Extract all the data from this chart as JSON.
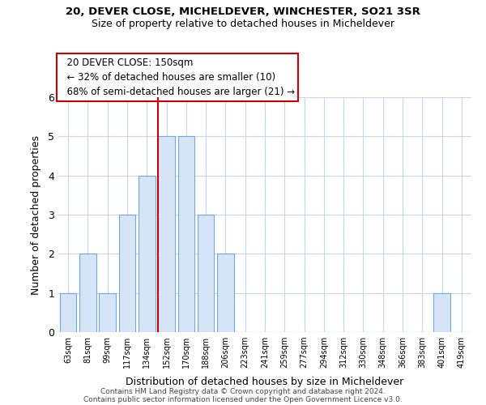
{
  "title1": "20, DEVER CLOSE, MICHELDEVER, WINCHESTER, SO21 3SR",
  "title2": "Size of property relative to detached houses in Micheldever",
  "xlabel": "Distribution of detached houses by size in Micheldever",
  "ylabel": "Number of detached properties",
  "bar_labels": [
    "63sqm",
    "81sqm",
    "99sqm",
    "117sqm",
    "134sqm",
    "152sqm",
    "170sqm",
    "188sqm",
    "206sqm",
    "223sqm",
    "241sqm",
    "259sqm",
    "277sqm",
    "294sqm",
    "312sqm",
    "330sqm",
    "348sqm",
    "366sqm",
    "383sqm",
    "401sqm",
    "419sqm"
  ],
  "bar_values": [
    1,
    2,
    1,
    3,
    4,
    5,
    5,
    3,
    2,
    0,
    0,
    0,
    0,
    0,
    0,
    0,
    0,
    0,
    0,
    1,
    0
  ],
  "bar_fill_color": "#d6e4f7",
  "bar_edge_color": "#6fa8dc",
  "vline_index": 5,
  "annotation_title": "20 DEVER CLOSE: 150sqm",
  "annotation_line1": "← 32% of detached houses are smaller (10)",
  "annotation_line2": "68% of semi-detached houses are larger (21) →",
  "vline_color": "#cc0000",
  "annotation_box_facecolor": "#ffffff",
  "annotation_box_edgecolor": "#cc0000",
  "ylim": [
    0,
    6
  ],
  "background_color": "#ffffff",
  "grid_color": "#c8d4e8",
  "footer1": "Contains HM Land Registry data © Crown copyright and database right 2024.",
  "footer2": "Contains public sector information licensed under the Open Government Licence v3.0."
}
